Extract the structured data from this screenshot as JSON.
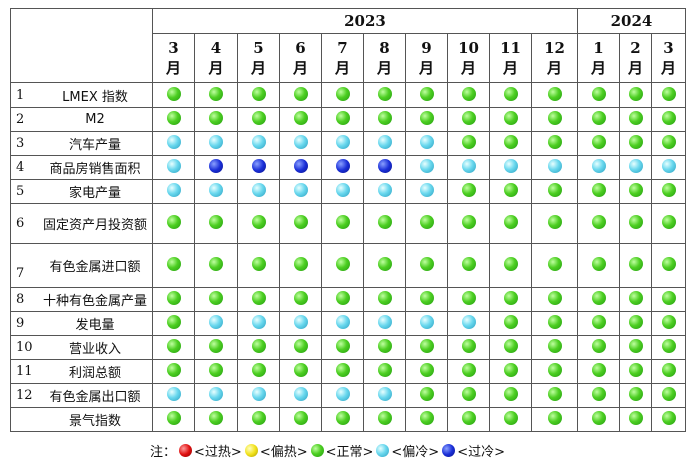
{
  "years": [
    {
      "label": "2023",
      "span": 10
    },
    {
      "label": "2024",
      "span": 3
    }
  ],
  "months": [
    "3\n月",
    "4\n月",
    "5\n月",
    "6\n月",
    "7\n月",
    "8\n月",
    "9\n月",
    "10\n月",
    "11\n月",
    "12\n月",
    "1\n月",
    "2\n月",
    "3\n月"
  ],
  "rows": [
    {
      "num": "1",
      "name": "LMEX 指数",
      "h": 25,
      "states": [
        "green",
        "green",
        "green",
        "green",
        "green",
        "green",
        "green",
        "green",
        "green",
        "green",
        "green",
        "green",
        "green"
      ]
    },
    {
      "num": "2",
      "name": "M2",
      "h": 24,
      "states": [
        "green",
        "green",
        "green",
        "green",
        "green",
        "green",
        "green",
        "green",
        "green",
        "green",
        "green",
        "green",
        "green"
      ]
    },
    {
      "num": "3",
      "name": "汽车产量",
      "h": 24,
      "states": [
        "lightblue",
        "lightblue",
        "lightblue",
        "lightblue",
        "lightblue",
        "lightblue",
        "lightblue",
        "green",
        "green",
        "green",
        "green",
        "green",
        "green"
      ]
    },
    {
      "num": "4",
      "name": "商品房销售面积",
      "h": 24,
      "states": [
        "lightblue",
        "blue",
        "blue",
        "blue",
        "blue",
        "blue",
        "lightblue",
        "lightblue",
        "lightblue",
        "lightblue",
        "lightblue",
        "lightblue",
        "lightblue"
      ]
    },
    {
      "num": "5",
      "name": "家电产量",
      "h": 24,
      "states": [
        "lightblue",
        "lightblue",
        "lightblue",
        "lightblue",
        "lightblue",
        "lightblue",
        "lightblue",
        "green",
        "green",
        "green",
        "green",
        "green",
        "green"
      ]
    },
    {
      "num": "6",
      "name": "固定资产月投资额",
      "h": 40,
      "states": [
        "green",
        "green",
        "green",
        "green",
        "green",
        "green",
        "green",
        "green",
        "green",
        "green",
        "green",
        "green",
        "green"
      ]
    },
    {
      "num": "7",
      "name": "有色金属进口额",
      "h": 44,
      "states": [
        "green",
        "green",
        "green",
        "green",
        "green",
        "green",
        "green",
        "green",
        "green",
        "green",
        "green",
        "green",
        "green"
      ]
    },
    {
      "num": "8",
      "name": "十种有色金属产量",
      "h": 24,
      "states": [
        "green",
        "green",
        "green",
        "green",
        "green",
        "green",
        "green",
        "green",
        "green",
        "green",
        "green",
        "green",
        "green"
      ]
    },
    {
      "num": "9",
      "name": "发电量",
      "h": 24,
      "states": [
        "green",
        "lightblue",
        "lightblue",
        "lightblue",
        "lightblue",
        "lightblue",
        "lightblue",
        "lightblue",
        "green",
        "green",
        "green",
        "green",
        "green"
      ]
    },
    {
      "num": "10",
      "name": "营业收入",
      "h": 24,
      "states": [
        "green",
        "green",
        "green",
        "green",
        "green",
        "green",
        "green",
        "green",
        "green",
        "green",
        "green",
        "green",
        "green"
      ]
    },
    {
      "num": "11",
      "name": "利润总额",
      "h": 24,
      "states": [
        "green",
        "green",
        "green",
        "green",
        "green",
        "green",
        "green",
        "green",
        "green",
        "green",
        "green",
        "green",
        "green"
      ]
    },
    {
      "num": "12",
      "name": "有色金属出口额",
      "h": 24,
      "states": [
        "lightblue",
        "lightblue",
        "lightblue",
        "lightblue",
        "lightblue",
        "lightblue",
        "green",
        "green",
        "green",
        "green",
        "green",
        "green",
        "green"
      ]
    },
    {
      "num": "",
      "name": "景气指数",
      "h": 24,
      "states": [
        "green",
        "green",
        "green",
        "green",
        "green",
        "green",
        "green",
        "green",
        "green",
        "green",
        "green",
        "green",
        "green"
      ]
    }
  ],
  "legend": {
    "prefix": "注：",
    "items": [
      {
        "color": "red",
        "label": "<过热>"
      },
      {
        "color": "yellow",
        "label": "<偏热>"
      },
      {
        "color": "green",
        "label": "<正常>"
      },
      {
        "color": "lightblue",
        "label": "<偏冷>"
      },
      {
        "color": "blue",
        "label": "<过冷>"
      }
    ]
  }
}
